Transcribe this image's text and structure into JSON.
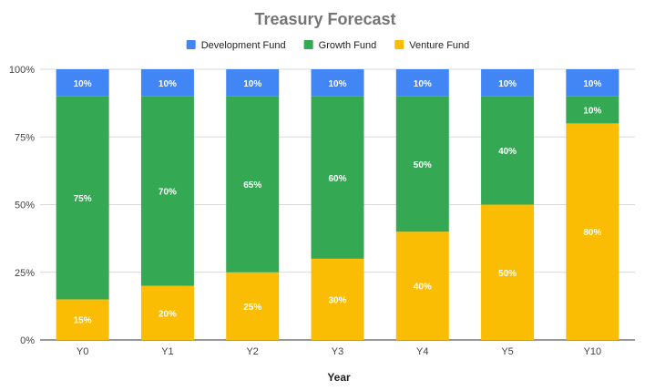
{
  "chart_data": {
    "type": "bar",
    "stacked": true,
    "title": "Treasury Forecast",
    "xlabel": "Year",
    "ylabel": "",
    "categories": [
      "Y0",
      "Y1",
      "Y2",
      "Y3",
      "Y4",
      "Y5",
      "Y10"
    ],
    "series": [
      {
        "name": "Venture Fund",
        "color": "#fbbc04",
        "values": [
          15,
          20,
          25,
          30,
          40,
          50,
          80
        ]
      },
      {
        "name": "Growth Fund",
        "color": "#34a853",
        "values": [
          75,
          70,
          65,
          60,
          50,
          40,
          10
        ]
      },
      {
        "name": "Development Fund",
        "color": "#4285f4",
        "values": [
          10,
          10,
          10,
          10,
          10,
          10,
          10
        ]
      }
    ],
    "legend_order": [
      "Development Fund",
      "Growth Fund",
      "Venture Fund"
    ],
    "legend_position": "top",
    "ylim": [
      0,
      100
    ],
    "yticks": [
      0,
      25,
      50,
      75,
      100
    ],
    "ytick_labels": [
      "0%",
      "25%",
      "50%",
      "75%",
      "100%"
    ],
    "value_suffix": "%",
    "grid": true
  }
}
